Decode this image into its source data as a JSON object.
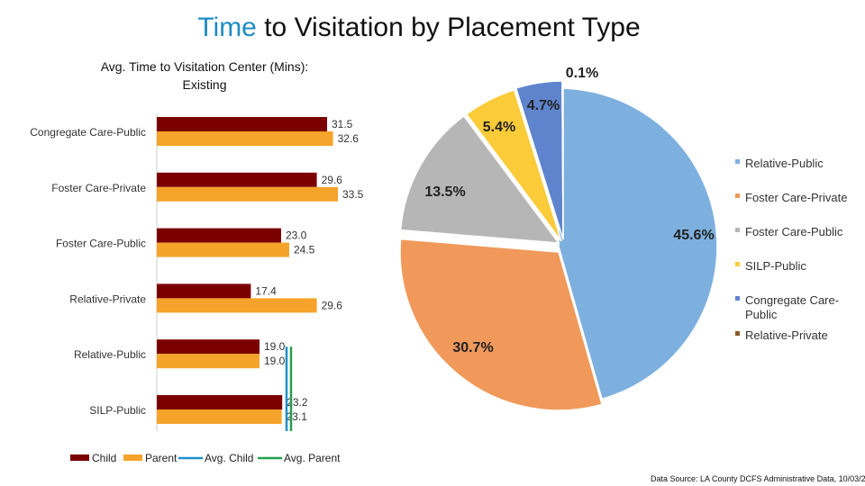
{
  "title": {
    "accent": "Time",
    "rest": " to Visitation by Placement Type"
  },
  "source_note": "Data Source: LA County DCFS Administrative Data, 10/03/2",
  "chart_data": [
    {
      "type": "bar",
      "orientation": "horizontal",
      "title_lines": [
        "Avg. Time to Visitation Center (Mins):",
        "Existing"
      ],
      "categories": [
        "Congregate Care-Public",
        "Foster Care-Private",
        "Foster Care-Public",
        "Relative-Private",
        "Relative-Public",
        "SILP-Public"
      ],
      "series": [
        {
          "name": "Child",
          "color": "#7b0000",
          "values": [
            31.5,
            29.6,
            23.0,
            17.4,
            19.0,
            23.2
          ]
        },
        {
          "name": "Parent",
          "color": "#f5a32a",
          "values": [
            32.6,
            33.5,
            24.5,
            29.6,
            19.0,
            23.1
          ]
        }
      ],
      "value_labels": [
        [
          "31.5",
          "29.6",
          "23.0",
          "17.4",
          "19.0",
          "23.2"
        ],
        [
          "32.6",
          "33.5",
          "24.5",
          "29.6",
          "19.0",
          "23.1"
        ]
      ],
      "reference_lines": [
        {
          "name": "Avg. Child",
          "color": "#1f8fc9"
        },
        {
          "name": "Avg. Parent",
          "color": "#22a050"
        }
      ],
      "legend_position": "bottom",
      "grid": false
    },
    {
      "type": "pie",
      "labels": [
        "Relative-Public",
        "Foster Care-Private",
        "Foster Care-Public",
        "SILP-Public",
        "Congregate Care-Public",
        "Relative-Private"
      ],
      "values": [
        45.6,
        30.7,
        13.5,
        5.4,
        4.7,
        0.1
      ],
      "value_labels": [
        "45.6%",
        "30.7%",
        "13.5%",
        "5.4%",
        "4.7%",
        "0.1%"
      ],
      "colors": [
        "#7eb0df",
        "#f0995a",
        "#b6b6b6",
        "#fbcb39",
        "#5f84ce",
        "#8a5a26"
      ],
      "legend_position": "right",
      "exploded": true
    }
  ]
}
